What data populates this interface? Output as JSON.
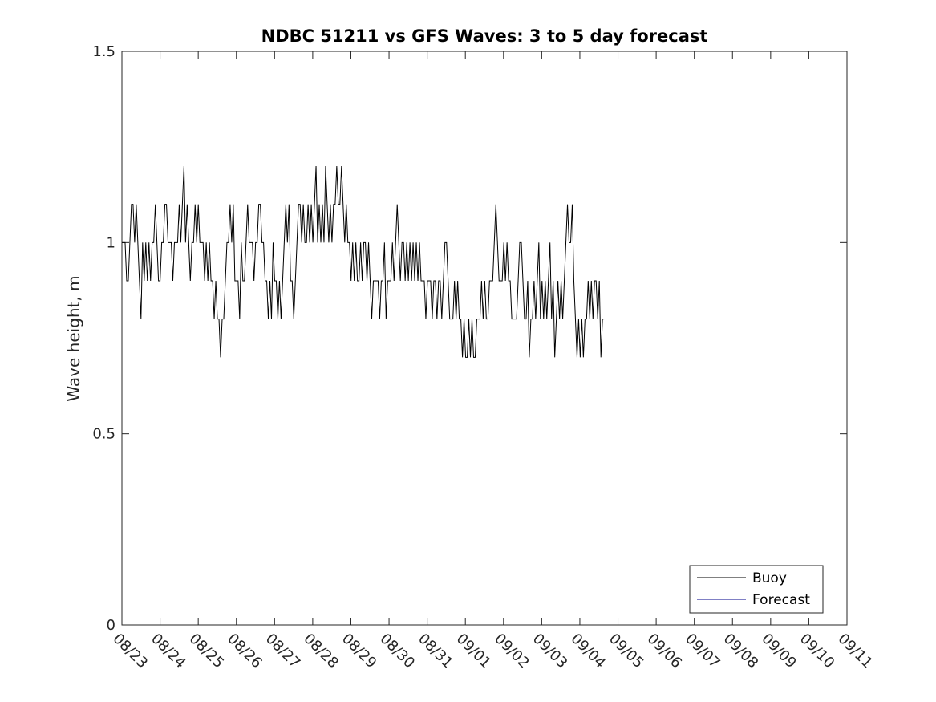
{
  "chart_data": {
    "type": "line",
    "title": "NDBC 51211 vs GFS Waves: 3 to 5 day forecast",
    "xlabel": "",
    "ylabel": "Wave height, m",
    "xlim": [
      0,
      19
    ],
    "ylim": [
      0,
      1.5
    ],
    "x_tick_labels": [
      "08/23",
      "08/24",
      "08/25",
      "08/26",
      "08/27",
      "08/28",
      "08/29",
      "08/30",
      "08/31",
      "09/01",
      "09/02",
      "09/03",
      "09/04",
      "09/05",
      "09/06",
      "09/07",
      "09/08",
      "09/09",
      "09/10",
      "09/11"
    ],
    "y_ticks": [
      0,
      0.5,
      1,
      1.5
    ],
    "y_tick_labels": [
      "0",
      "0.5",
      "1",
      "1.5"
    ],
    "x_units": "days since 08/23",
    "legend": {
      "placement": "bottom-right",
      "entries": [
        {
          "name": "Buoy",
          "color": "#000000"
        },
        {
          "name": "Forecast",
          "color": "#00008b"
        }
      ]
    },
    "series": [
      {
        "name": "Buoy",
        "color": "#000000",
        "x_start": 0.0,
        "x_step": 0.0417,
        "values": [
          1.0,
          1.0,
          1.0,
          0.9,
          0.9,
          1.0,
          1.1,
          1.1,
          1.0,
          1.1,
          1.0,
          0.9,
          0.8,
          1.0,
          0.9,
          1.0,
          0.9,
          1.0,
          0.9,
          1.0,
          1.0,
          1.1,
          1.0,
          0.9,
          0.9,
          1.0,
          1.0,
          1.1,
          1.1,
          1.0,
          1.0,
          1.0,
          0.9,
          1.0,
          1.0,
          1.0,
          1.1,
          1.0,
          1.1,
          1.2,
          1.0,
          1.1,
          1.0,
          0.9,
          1.0,
          1.0,
          1.1,
          1.0,
          1.1,
          1.0,
          1.0,
          1.0,
          0.9,
          1.0,
          0.9,
          1.0,
          0.9,
          0.9,
          0.8,
          0.9,
          0.8,
          0.8,
          0.7,
          0.8,
          0.8,
          0.9,
          1.0,
          1.0,
          1.1,
          1.0,
          1.1,
          0.9,
          0.9,
          0.9,
          0.8,
          1.0,
          0.9,
          0.9,
          1.0,
          1.1,
          1.0,
          1.0,
          1.0,
          0.9,
          1.0,
          1.0,
          1.1,
          1.1,
          1.0,
          1.0,
          0.9,
          0.9,
          0.8,
          0.9,
          0.8,
          1.0,
          0.9,
          0.9,
          0.8,
          0.9,
          0.8,
          0.9,
          1.0,
          1.1,
          1.0,
          1.1,
          0.9,
          0.9,
          0.8,
          0.9,
          1.0,
          1.1,
          1.1,
          1.0,
          1.1,
          1.0,
          1.0,
          1.1,
          1.0,
          1.1,
          1.0,
          1.1,
          1.2,
          1.0,
          1.1,
          1.0,
          1.1,
          1.0,
          1.2,
          1.1,
          1.0,
          1.1,
          1.0,
          1.1,
          1.1,
          1.2,
          1.1,
          1.1,
          1.2,
          1.1,
          1.0,
          1.1,
          1.0,
          1.0,
          0.9,
          1.0,
          0.9,
          1.0,
          0.9,
          0.9,
          1.0,
          0.9,
          1.0,
          1.0,
          0.9,
          1.0,
          0.9,
          0.8,
          0.9,
          0.9,
          0.9,
          0.9,
          0.8,
          0.9,
          0.9,
          1.0,
          0.8,
          0.9,
          0.9,
          0.9,
          1.0,
          0.9,
          1.0,
          1.1,
          1.0,
          0.9,
          1.0,
          1.0,
          0.9,
          1.0,
          0.9,
          1.0,
          0.9,
          1.0,
          0.9,
          1.0,
          0.9,
          1.0,
          0.9,
          0.9,
          0.9,
          0.8,
          0.9,
          0.9,
          0.9,
          0.8,
          0.9,
          0.9,
          0.8,
          0.9,
          0.9,
          0.8,
          0.9,
          1.0,
          1.0,
          0.9,
          0.8,
          0.8,
          0.8,
          0.9,
          0.8,
          0.9,
          0.8,
          0.8,
          0.7,
          0.8,
          0.7,
          0.7,
          0.8,
          0.7,
          0.8,
          0.7,
          0.7,
          0.8,
          0.8,
          0.8,
          0.9,
          0.8,
          0.9,
          0.8,
          0.8,
          0.9,
          0.9,
          0.9,
          1.0,
          1.1,
          1.0,
          0.9,
          0.9,
          0.9,
          1.0,
          0.9,
          1.0,
          0.9,
          0.9,
          0.8,
          0.8,
          0.8,
          0.8,
          0.9,
          1.0,
          1.0,
          0.9,
          0.8,
          0.8,
          0.9,
          0.7,
          0.8,
          0.8,
          0.9,
          0.8,
          0.9,
          1.0,
          0.8,
          0.9,
          0.8,
          0.9,
          0.8,
          0.9,
          1.0,
          0.8,
          0.9,
          0.7,
          0.8,
          0.9,
          0.8,
          0.9,
          0.8,
          0.9,
          1.0,
          1.1,
          1.0,
          1.0,
          1.1,
          0.9,
          0.8,
          0.7,
          0.8,
          0.7,
          0.8,
          0.7,
          0.8,
          0.8,
          0.9,
          0.8,
          0.9,
          0.8,
          0.9,
          0.9,
          0.8,
          0.9,
          0.7,
          0.8,
          0.8
        ]
      },
      {
        "name": "Forecast",
        "color": "#00008b",
        "values": []
      }
    ]
  }
}
